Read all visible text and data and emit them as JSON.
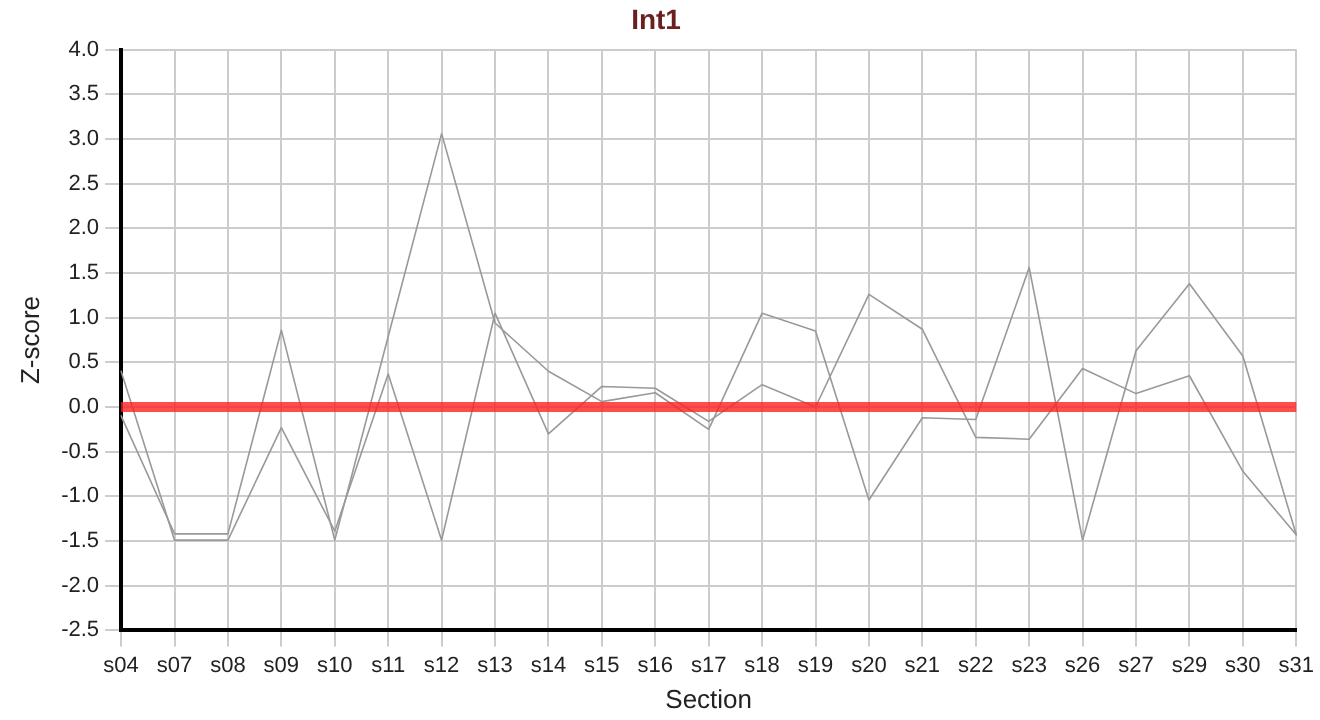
{
  "chart_data": {
    "type": "line",
    "title": "Int1",
    "xlabel": "Section",
    "ylabel": "Z-score",
    "categories": [
      "s04",
      "s07",
      "s08",
      "s09",
      "s10",
      "s11",
      "s12",
      "s13",
      "s14",
      "s15",
      "s16",
      "s17",
      "s18",
      "s19",
      "s20",
      "s21",
      "s22",
      "s23",
      "s26",
      "s27",
      "s29",
      "s30",
      "s31"
    ],
    "series": [
      {
        "color": "#999999",
        "values": [
          -0.1,
          -1.42,
          -1.42,
          0.86,
          -1.49,
          0.79,
          3.06,
          0.94,
          0.4,
          0.06,
          0.16,
          -0.25,
          1.05,
          0.85,
          -1.04,
          -0.12,
          -0.14,
          1.56,
          -1.49,
          0.63,
          1.38,
          0.57,
          -1.43
        ]
      },
      {
        "color": "#999999",
        "values": [
          0.4,
          -1.49,
          -1.49,
          -0.23,
          -1.39,
          0.37,
          -1.49,
          1.05,
          -0.3,
          0.23,
          0.21,
          -0.16,
          0.25,
          0.0,
          1.26,
          0.87,
          -0.34,
          -0.36,
          0.43,
          0.15,
          0.35,
          -0.72,
          -1.43
        ]
      }
    ],
    "ylim": [
      -2.5,
      4.0
    ],
    "yticks": [
      {
        "value": -2.5,
        "label": "-2.5"
      },
      {
        "value": -2,
        "label": "-2.0"
      },
      {
        "value": -1.5,
        "label": "-1.5"
      },
      {
        "value": -1,
        "label": "-1.0"
      },
      {
        "value": -0.5,
        "label": "-0.5"
      },
      {
        "value": 0,
        "label": "0.0"
      },
      {
        "value": 0.5,
        "label": "0.5"
      },
      {
        "value": 1,
        "label": "1.0"
      },
      {
        "value": 1.5,
        "label": "1.5"
      },
      {
        "value": 2,
        "label": "2.0"
      },
      {
        "value": 2.5,
        "label": "2.5"
      },
      {
        "value": 3,
        "label": "3.0"
      },
      {
        "value": 3.5,
        "label": "3.5"
      },
      {
        "value": 4,
        "label": "4.0"
      }
    ],
    "ref_lines": [
      {
        "axis": "y",
        "value": 0,
        "color": "#ff2020"
      }
    ],
    "grid": true,
    "legend": false,
    "marker": "none",
    "line_style": "solid"
  }
}
